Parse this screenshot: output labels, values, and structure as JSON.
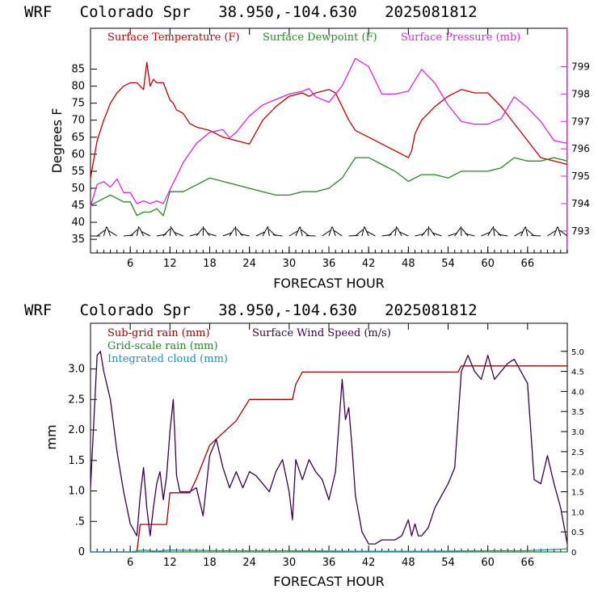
{
  "colors": {
    "temperature": "#c00000",
    "dewpoint": "#1f8a1f",
    "pressure": "#e020e0",
    "subgrid_rain": "#a00000",
    "grid_rain": "#1f8a1f",
    "cloud": "#1f8fbf",
    "wind": "#3a0050"
  },
  "chart_data": [
    {
      "type": "line",
      "title": "WRF   Colorado Spr   38.950,-104.630   2025081812",
      "xlabel": "FORECAST HOUR",
      "ylabel": "Degrees F",
      "xlim": [
        0,
        72
      ],
      "ylim": [
        31,
        97
      ],
      "y2lim": [
        792.2,
        800.4
      ],
      "x_ticks": [
        "6",
        "12",
        "18",
        "24",
        "30",
        "36",
        "42",
        "48",
        "54",
        "60",
        "66"
      ],
      "y_ticks": [
        "35",
        "40",
        "45",
        "50",
        "55",
        "60",
        "65",
        "70",
        "75",
        "80",
        "85"
      ],
      "y2_ticks": [
        "793",
        "794",
        "795",
        "796",
        "797",
        "798",
        "799"
      ],
      "legend_position": "top",
      "series": [
        {
          "name": "Surface Temperature (F)",
          "axis": "left",
          "x": [
            0,
            1,
            2,
            3,
            4,
            5,
            6,
            7,
            8,
            8.5,
            9,
            9.5,
            10,
            11,
            12,
            12.5,
            13,
            14,
            15,
            16,
            18,
            20,
            22,
            24,
            26,
            28,
            30,
            32,
            33,
            34,
            36,
            37,
            38,
            39,
            40,
            42,
            44,
            46,
            48,
            48.5,
            49,
            50,
            52,
            54,
            56,
            58,
            60,
            62,
            64,
            66,
            68,
            70,
            72
          ],
          "values": [
            53,
            64,
            70,
            75,
            78,
            80,
            81,
            81,
            79,
            87,
            80,
            82,
            81,
            81,
            76,
            75,
            73,
            72,
            69,
            68,
            67,
            65,
            64,
            63,
            70,
            74,
            77,
            78,
            77,
            78,
            79,
            78,
            74,
            70,
            67,
            65,
            63,
            61,
            59,
            61,
            66,
            70,
            74,
            77,
            79,
            78,
            78,
            74,
            69,
            64,
            59,
            58,
            57
          ]
        },
        {
          "name": "Surface Dewpoint (F)",
          "axis": "left",
          "x": [
            0,
            1,
            2,
            3,
            4,
            5,
            6,
            7,
            8,
            9,
            10,
            11,
            12,
            14,
            16,
            18,
            20,
            22,
            24,
            26,
            28,
            30,
            32,
            34,
            36,
            38,
            40,
            42,
            44,
            46,
            48,
            50,
            52,
            54,
            56,
            58,
            60,
            62,
            64,
            66,
            68,
            70,
            72
          ],
          "values": [
            45,
            46,
            47,
            48,
            47,
            46,
            46,
            42,
            43,
            43,
            44,
            42,
            49,
            49,
            51,
            53,
            52,
            51,
            50,
            49,
            48,
            48,
            49,
            49,
            50,
            53,
            59,
            59,
            57,
            55,
            52,
            54,
            54,
            53,
            55,
            55,
            55,
            56,
            59,
            58,
            58,
            59,
            58
          ]
        },
        {
          "name": "Surface Pressure (mb)",
          "axis": "right",
          "x": [
            0,
            1,
            2,
            3,
            4,
            5,
            6,
            7,
            8,
            9,
            10,
            11,
            12,
            13,
            14,
            16,
            18,
            20,
            21,
            22,
            24,
            26,
            28,
            30,
            32,
            33,
            34,
            36,
            38,
            40,
            42,
            44,
            46,
            48,
            50,
            52,
            54,
            56,
            58,
            60,
            62,
            64,
            66,
            68,
            70,
            72
          ],
          "values": [
            793.9,
            794.7,
            794.8,
            794.6,
            794.9,
            794.4,
            794.4,
            794.0,
            794.1,
            794.0,
            794.1,
            794.0,
            794.5,
            795.0,
            795.5,
            796.2,
            796.6,
            796.7,
            796.4,
            796.6,
            797.2,
            797.6,
            797.8,
            798.0,
            798.1,
            798.2,
            797.9,
            797.7,
            798.3,
            799.3,
            799.0,
            798.0,
            798.0,
            798.1,
            798.9,
            798.4,
            797.6,
            797.0,
            796.9,
            796.9,
            797.1,
            797.9,
            797.5,
            797.0,
            796.3,
            796.2
          ]
        }
      ]
    },
    {
      "type": "line",
      "title": "WRF   Colorado Spr   38.950,-104.630   2025081812",
      "xlabel": "FORECAST HOUR",
      "ylabel": "mm",
      "xlim": [
        0,
        72
      ],
      "ylim": [
        0,
        3.75
      ],
      "y2lim": [
        0,
        5.7
      ],
      "x_ticks": [
        "6",
        "12",
        "18",
        "24",
        "30",
        "36",
        "42",
        "48",
        "54",
        "60",
        "66"
      ],
      "y_ticks": [
        "0",
        ".5",
        "1.0",
        "1.5",
        "2.0",
        "2.5",
        "3.0"
      ],
      "y2_ticks": [
        "0",
        "0.5",
        "1.0",
        "1.5",
        "2.0",
        "2.5",
        "3.0",
        "3.5",
        "4.0",
        "4.5",
        "5.0"
      ],
      "legend_position": "top-left",
      "series": [
        {
          "name": "Sub-grid rain (mm)",
          "axis": "left",
          "x": [
            0,
            7,
            7.5,
            11.5,
            12,
            15,
            16,
            18,
            20,
            22,
            24,
            24.5,
            30,
            30.5,
            31,
            32,
            55.5,
            56,
            72
          ],
          "values": [
            0,
            0,
            0.45,
            0.45,
            0.97,
            0.97,
            1.2,
            1.75,
            1.95,
            2.15,
            2.5,
            2.5,
            2.5,
            2.5,
            2.75,
            2.95,
            2.95,
            3.05,
            3.05
          ]
        },
        {
          "name": "Grid-scale rain (mm)",
          "axis": "left",
          "x": [
            0,
            72
          ],
          "values": [
            0,
            0
          ]
        },
        {
          "name": "Integrated cloud (mm)",
          "axis": "left",
          "x": [
            0,
            6,
            8,
            10,
            12,
            20,
            30,
            40,
            50,
            60,
            66,
            68,
            70,
            72
          ],
          "values": [
            0,
            0,
            0.03,
            0.01,
            0.03,
            0.02,
            0.02,
            0.01,
            0.01,
            0.02,
            0.02,
            0.03,
            0.04,
            0.05
          ]
        },
        {
          "name": "Surface Wind Speed (m/s)",
          "axis": "right",
          "x": [
            0,
            1,
            1.5,
            2,
            3,
            4,
            5,
            6,
            7,
            7.5,
            8,
            8.5,
            9,
            9.5,
            10,
            10.5,
            11,
            11.5,
            12,
            12.5,
            13,
            13.5,
            14,
            15,
            16,
            17,
            18,
            19,
            20,
            21,
            22,
            23,
            24,
            25,
            26,
            27,
            28,
            29,
            30,
            30.5,
            31,
            32,
            33,
            34,
            35,
            36,
            37,
            38,
            38.5,
            39,
            39.5,
            40,
            41,
            42,
            43,
            44,
            46,
            47,
            48,
            48.5,
            49,
            49.5,
            50,
            51,
            52,
            53,
            54,
            55,
            56,
            57,
            58,
            59,
            60,
            61,
            62,
            63,
            64,
            65,
            66,
            67,
            68,
            69,
            70,
            71,
            72
          ],
          "values": [
            1.6,
            4.9,
            5.0,
            4.5,
            3.8,
            2.5,
            1.5,
            0.7,
            0.4,
            1.4,
            2.1,
            1.1,
            0.4,
            1.1,
            1.7,
            2.0,
            1.3,
            1.9,
            3.0,
            3.8,
            1.9,
            1.5,
            1.5,
            1.5,
            1.6,
            0.9,
            2.4,
            2.8,
            2.1,
            1.6,
            2.0,
            1.6,
            2.0,
            1.9,
            1.7,
            1.5,
            2.0,
            2.3,
            1.5,
            0.8,
            2.3,
            1.8,
            2.3,
            2.0,
            1.8,
            1.3,
            2.0,
            4.3,
            3.3,
            3.6,
            2.6,
            1.4,
            0.5,
            0.2,
            0.2,
            0.3,
            0.3,
            0.4,
            0.8,
            0.4,
            0.7,
            0.4,
            0.4,
            0.6,
            1.1,
            1.4,
            1.7,
            2.1,
            4.5,
            4.9,
            4.5,
            4.3,
            4.9,
            4.3,
            4.5,
            4.7,
            4.8,
            4.5,
            4.2,
            1.8,
            1.7,
            2.4,
            1.7,
            1.1,
            0.2
          ]
        }
      ]
    }
  ]
}
